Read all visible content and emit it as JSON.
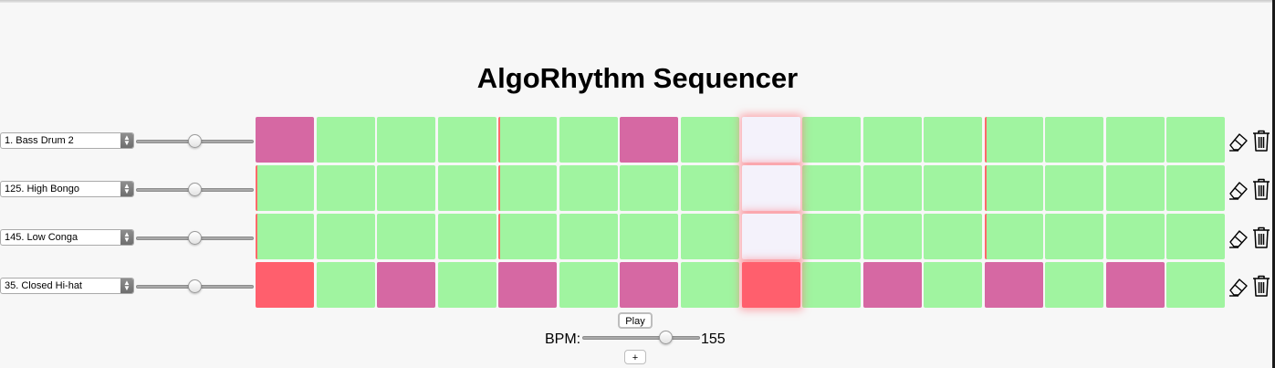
{
  "title": "AlgoRhythm Sequencer",
  "tracks": [
    {
      "instrument": "1. Bass Drum 2",
      "steps": [
        "on",
        "off",
        "off",
        "off",
        "off",
        "off",
        "on",
        "off",
        "cur",
        "off",
        "off",
        "off",
        "off",
        "off",
        "off",
        "off"
      ],
      "marks": [
        4,
        12
      ]
    },
    {
      "instrument": "125. High Bongo",
      "steps": [
        "off",
        "off",
        "off",
        "off",
        "off",
        "off",
        "off",
        "off",
        "cur",
        "off",
        "off",
        "off",
        "off",
        "off",
        "off",
        "off"
      ],
      "marks": [
        0,
        4,
        12
      ]
    },
    {
      "instrument": "145. Low Conga",
      "steps": [
        "off",
        "off",
        "off",
        "off",
        "off",
        "off",
        "off",
        "off",
        "cur",
        "off",
        "off",
        "off",
        "off",
        "off",
        "off",
        "off"
      ],
      "marks": [
        0,
        4,
        12
      ]
    },
    {
      "instrument": "35. Closed Hi-hat",
      "steps": [
        "hit",
        "off",
        "on",
        "off",
        "on",
        "off",
        "on",
        "off",
        "hit",
        "off",
        "on",
        "off",
        "on",
        "off",
        "on",
        "off"
      ],
      "marks": []
    }
  ],
  "controls": {
    "play_label": "Play",
    "bpm_label": "BPM:",
    "bpm_value": "155",
    "add_label": "+"
  },
  "colors": {
    "step_off": "#a0f4a0",
    "step_on": "#d668a3",
    "step_playing": "#ff5f6d",
    "playhead": "#f4f2fb"
  },
  "icons": {
    "clear": "eraser-icon",
    "delete": "trash-icon"
  }
}
